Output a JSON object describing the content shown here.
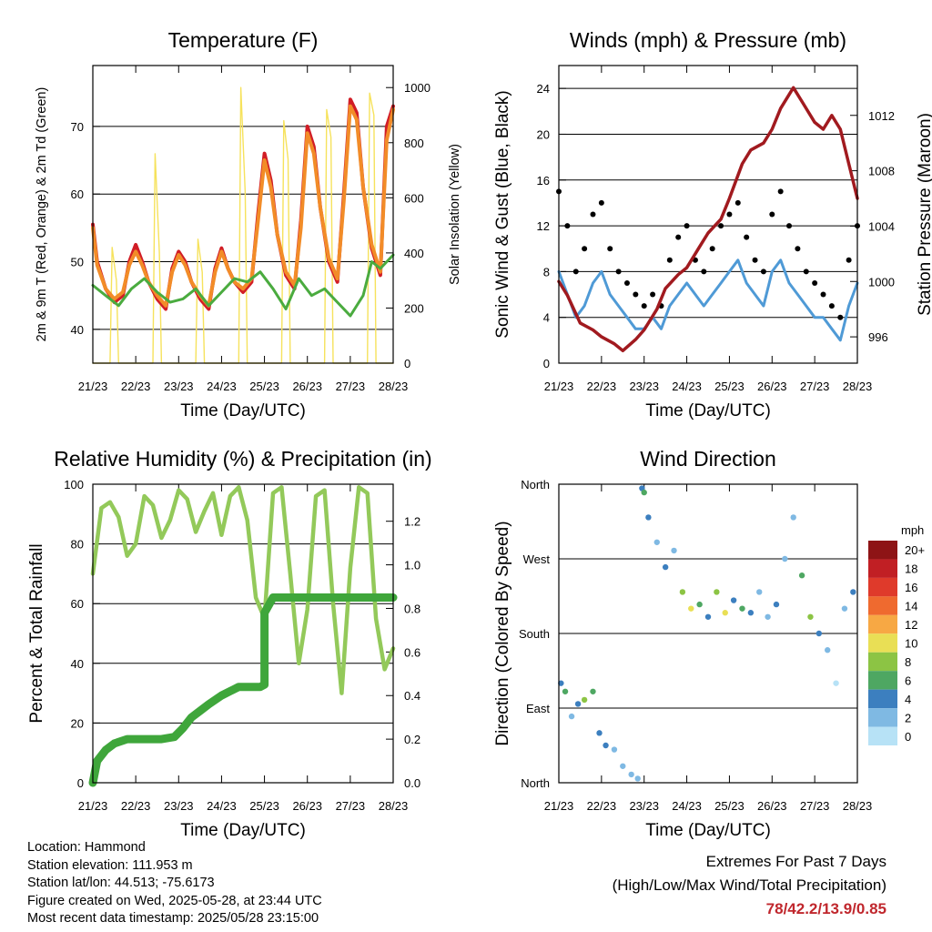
{
  "footer": {
    "location": "Location: Hammond",
    "elevation": "Station elevation: 111.953 m",
    "latlon": "Station lat/lon: 44.513; -75.6173",
    "created": "Figure created on Wed, 2025-05-28, at 23:44 UTC",
    "latest": "Most recent data timestamp: 2025/05/28 23:15:00"
  },
  "extremes": {
    "title": "Extremes For Past 7 Days",
    "subtitle": "(High/Low/Max Wind/Total Precipitation)",
    "values": "78/42.2/13.9/0.85"
  },
  "colors": {
    "temp_2m": "#d11d26",
    "temp_9m": "#f28c28",
    "dewpoint": "#4aab3f",
    "solar": "#f6e25c",
    "gust": "#000000",
    "wind": "#4f9ad6",
    "pressure": "#a11a1f",
    "rh": "#93c95a",
    "precip": "#3fa63b"
  },
  "chart_data": [
    {
      "type": "line",
      "title": "Temperature (F)",
      "xlabel": "Time (Day/UTC)",
      "ylabel": "2m & 9m T (Red, Orange) & 2m Td (Green)",
      "y2label": "Solar Insolation (Yellow)",
      "x_ticks": [
        "21/23",
        "22/23",
        "23/23",
        "24/23",
        "25/23",
        "26/23",
        "27/23",
        "28/23"
      ],
      "xlim": [
        0,
        7
      ],
      "ylim": [
        35,
        79
      ],
      "y_ticks": [
        40,
        50,
        60,
        70
      ],
      "y2lim": [
        0,
        1080
      ],
      "y2_ticks": [
        0,
        200,
        400,
        600,
        800,
        1000
      ],
      "grid": true,
      "series": [
        {
          "key": "temp_2m",
          "x": [
            0,
            0.1,
            0.3,
            0.5,
            0.7,
            0.85,
            1.0,
            1.15,
            1.3,
            1.5,
            1.7,
            1.85,
            2.0,
            2.15,
            2.3,
            2.5,
            2.7,
            2.85,
            3.0,
            3.15,
            3.3,
            3.5,
            3.7,
            3.85,
            4.0,
            4.15,
            4.3,
            4.5,
            4.7,
            4.85,
            5.0,
            5.15,
            5.3,
            5.5,
            5.7,
            5.85,
            6.0,
            6.15,
            6.3,
            6.5,
            6.7,
            6.85,
            7.0
          ],
          "y": [
            55.5,
            50,
            46,
            44,
            45,
            50,
            52.5,
            50,
            47,
            44.5,
            43,
            49,
            51.5,
            50,
            47,
            44.5,
            43,
            49,
            52,
            49,
            47,
            45.5,
            47,
            57,
            66,
            62,
            54,
            48,
            46,
            56,
            70,
            67,
            58,
            50,
            47,
            60,
            74,
            72,
            61,
            52,
            48,
            70,
            73
          ]
        },
        {
          "key": "temp_9m",
          "x": [
            0,
            0.1,
            0.3,
            0.5,
            0.7,
            0.85,
            1.0,
            1.15,
            1.3,
            1.5,
            1.7,
            1.85,
            2.0,
            2.15,
            2.3,
            2.5,
            2.7,
            2.85,
            3.0,
            3.15,
            3.3,
            3.5,
            3.7,
            3.85,
            4.0,
            4.15,
            4.3,
            4.5,
            4.7,
            4.85,
            5.0,
            5.15,
            5.3,
            5.5,
            5.7,
            5.85,
            6.0,
            6.15,
            6.3,
            6.5,
            6.7,
            6.85,
            7.0
          ],
          "y": [
            55,
            49.5,
            46,
            44.5,
            45.5,
            49.5,
            51.5,
            49.5,
            47,
            45,
            43.5,
            48.5,
            51,
            49.5,
            47,
            45,
            43.5,
            48.5,
            51.5,
            49,
            47,
            46,
            47.5,
            56,
            65,
            61,
            54,
            48.5,
            46.5,
            55,
            69,
            66,
            58,
            50.5,
            47.5,
            59,
            73,
            71,
            61,
            52.5,
            48.5,
            68,
            72.5
          ]
        },
        {
          "key": "dewpoint",
          "x": [
            0,
            0.3,
            0.6,
            0.9,
            1.2,
            1.5,
            1.8,
            2.1,
            2.4,
            2.7,
            3.0,
            3.3,
            3.6,
            3.9,
            4.2,
            4.5,
            4.8,
            5.1,
            5.4,
            5.7,
            6.0,
            6.3,
            6.5,
            6.7,
            7.0
          ],
          "y": [
            46.5,
            45,
            43.5,
            46,
            47.5,
            45.5,
            44,
            44.5,
            46,
            43.5,
            45.5,
            47.5,
            47,
            48.5,
            46,
            43,
            47.5,
            45,
            46,
            44,
            42,
            45,
            50,
            49,
            51
          ]
        },
        {
          "key": "solar",
          "axis": "y2",
          "x": [
            0,
            0.4,
            0.45,
            0.55,
            0.6,
            1.0,
            1.4,
            1.45,
            1.55,
            1.6,
            2.0,
            2.4,
            2.45,
            2.55,
            2.6,
            3.0,
            3.4,
            3.45,
            3.55,
            3.6,
            4.0,
            4.4,
            4.45,
            4.55,
            4.6,
            5.0,
            5.4,
            5.45,
            5.55,
            5.6,
            6.0,
            6.4,
            6.45,
            6.55,
            6.6,
            7.0
          ],
          "y": [
            0,
            0,
            420,
            300,
            0,
            0,
            0,
            760,
            400,
            0,
            0,
            0,
            450,
            330,
            0,
            0,
            0,
            1000,
            620,
            0,
            0,
            0,
            880,
            740,
            0,
            0,
            0,
            920,
            820,
            0,
            0,
            0,
            980,
            900,
            0,
            0
          ]
        }
      ]
    },
    {
      "type": "scatter",
      "title": "Winds (mph) & Pressure (mb)",
      "xlabel": "Time (Day/UTC)",
      "ylabel": "Sonic Wind & Gust (Blue, Black)",
      "y2label": "Station Pressure (Maroon)",
      "x_ticks": [
        "21/23",
        "22/23",
        "23/23",
        "24/23",
        "25/23",
        "26/23",
        "27/23",
        "28/23"
      ],
      "xlim": [
        0,
        7
      ],
      "ylim": [
        0,
        26
      ],
      "y_ticks": [
        0,
        4,
        8,
        12,
        16,
        20,
        24
      ],
      "y2lim": [
        994.1,
        1015.6
      ],
      "y2_ticks": [
        996,
        1000,
        1004,
        1008,
        1012
      ],
      "grid": true,
      "series": [
        {
          "key": "gust",
          "x": [
            0.0,
            0.2,
            0.4,
            0.6,
            0.8,
            1.0,
            1.2,
            1.4,
            1.6,
            1.8,
            2.0,
            2.2,
            2.4,
            2.6,
            2.8,
            3.0,
            3.2,
            3.4,
            3.6,
            3.8,
            4.0,
            4.2,
            4.4,
            4.6,
            4.8,
            5.0,
            5.2,
            5.4,
            5.6,
            5.8,
            6.0,
            6.2,
            6.4,
            6.6,
            6.8,
            7.0
          ],
          "y": [
            15,
            12,
            8,
            10,
            13,
            14,
            10,
            8,
            7,
            6,
            5,
            6,
            5,
            9,
            11,
            12,
            9,
            8,
            10,
            12,
            13,
            14,
            11,
            9,
            8,
            13,
            15,
            12,
            10,
            8,
            7,
            6,
            5,
            4,
            9,
            12
          ]
        },
        {
          "key": "wind",
          "x": [
            0.0,
            0.2,
            0.4,
            0.6,
            0.8,
            1.0,
            1.2,
            1.4,
            1.6,
            1.8,
            2.0,
            2.2,
            2.4,
            2.6,
            2.8,
            3.0,
            3.2,
            3.4,
            3.6,
            3.8,
            4.0,
            4.2,
            4.4,
            4.6,
            4.8,
            5.0,
            5.2,
            5.4,
            5.6,
            5.8,
            6.0,
            6.2,
            6.4,
            6.6,
            6.8,
            7.0
          ],
          "y": [
            8,
            6,
            4,
            5,
            7,
            8,
            6,
            5,
            4,
            3,
            3,
            4,
            3,
            5,
            6,
            7,
            6,
            5,
            6,
            7,
            8,
            9,
            7,
            6,
            5,
            8,
            9,
            7,
            6,
            5,
            4,
            4,
            3,
            2,
            5,
            7
          ]
        },
        {
          "key": "pressure",
          "axis": "y2",
          "x": [
            0,
            0.2,
            0.5,
            0.8,
            1.0,
            1.3,
            1.5,
            1.8,
            2.0,
            2.3,
            2.5,
            2.8,
            3.0,
            3.3,
            3.5,
            3.8,
            4.0,
            4.3,
            4.5,
            4.8,
            5.0,
            5.2,
            5.5,
            5.7,
            6.0,
            6.2,
            6.4,
            6.6,
            6.8,
            7.0
          ],
          "y": [
            1000,
            999,
            997,
            996.5,
            996,
            995.5,
            995,
            995.8,
            996.5,
            998,
            999.5,
            1000.5,
            1001,
            1002.5,
            1003.5,
            1004.5,
            1006,
            1008.5,
            1009.5,
            1010,
            1011,
            1012.5,
            1014,
            1013,
            1011.5,
            1011,
            1012,
            1011,
            1008.5,
            1006
          ]
        }
      ]
    },
    {
      "type": "line",
      "title": "Relative Humidity (%) & Precipitation (in)",
      "xlabel": "Time (Day/UTC)",
      "ylabel": "Percent & Total Rainfall",
      "x_ticks": [
        "21/23",
        "22/23",
        "23/23",
        "24/23",
        "25/23",
        "26/23",
        "27/23",
        "28/23"
      ],
      "xlim": [
        0,
        7
      ],
      "ylim": [
        0,
        100
      ],
      "y_ticks": [
        0,
        20,
        40,
        60,
        80,
        100
      ],
      "y2lim": [
        0,
        1.37
      ],
      "y2_ticks": [
        "0.0",
        "0.2",
        "0.4",
        "0.6",
        "0.8",
        "1.0",
        "1.2"
      ],
      "grid": true,
      "series": [
        {
          "key": "rh",
          "x": [
            0,
            0.2,
            0.4,
            0.6,
            0.8,
            1.0,
            1.2,
            1.4,
            1.6,
            1.8,
            2.0,
            2.2,
            2.4,
            2.6,
            2.8,
            3.0,
            3.2,
            3.4,
            3.6,
            3.8,
            4.0,
            4.2,
            4.4,
            4.6,
            4.8,
            5.0,
            5.2,
            5.4,
            5.6,
            5.8,
            6.0,
            6.2,
            6.4,
            6.6,
            6.8,
            7.0
          ],
          "y": [
            70,
            92,
            94,
            89,
            76,
            80,
            96,
            93,
            82,
            88,
            98,
            95,
            84,
            91,
            97,
            83,
            96,
            99,
            88,
            62,
            55,
            97,
            99,
            70,
            40,
            58,
            96,
            98,
            60,
            30,
            72,
            99,
            97,
            55,
            38,
            45
          ]
        },
        {
          "key": "precip",
          "axis": "y2",
          "x": [
            0,
            0.1,
            0.3,
            0.5,
            0.8,
            1.0,
            1.3,
            1.6,
            1.9,
            2.1,
            2.3,
            2.5,
            2.7,
            3.0,
            3.2,
            3.4,
            3.6,
            3.9,
            4.0,
            4.0,
            4.2,
            4.5,
            5.0,
            5.5,
            6.0,
            6.5,
            7.0
          ],
          "y": [
            0,
            0.1,
            0.15,
            0.18,
            0.2,
            0.2,
            0.2,
            0.2,
            0.21,
            0.25,
            0.3,
            0.33,
            0.36,
            0.4,
            0.42,
            0.44,
            0.44,
            0.44,
            0.45,
            0.78,
            0.85,
            0.85,
            0.85,
            0.85,
            0.85,
            0.85,
            0.85
          ]
        }
      ]
    },
    {
      "type": "scatter",
      "title": "Wind Direction",
      "xlabel": "Time (Day/UTC)",
      "ylabel": "Direction (Colored By Speed)",
      "x_ticks": [
        "21/23",
        "22/23",
        "23/23",
        "24/23",
        "25/23",
        "26/23",
        "27/23",
        "28/23"
      ],
      "xlim": [
        0,
        7
      ],
      "ylim": [
        0,
        360
      ],
      "y_ticks": [
        "North",
        "East",
        "South",
        "West",
        "North"
      ],
      "grid": true,
      "colorbar": {
        "title": "mph",
        "labels": [
          "20+",
          "18",
          "16",
          "14",
          "12",
          "10",
          "8",
          "6",
          "4",
          "2",
          "0"
        ],
        "colors": [
          "#8e1416",
          "#c11f24",
          "#df3a2b",
          "#ef6a2f",
          "#f7a844",
          "#e9df55",
          "#8cc444",
          "#4ea762",
          "#3c7fbf",
          "#7fb9e3",
          "#b7e2f6"
        ]
      },
      "series": [
        {
          "name": "direction",
          "x": [
            0.05,
            0.15,
            0.3,
            0.45,
            0.6,
            0.8,
            0.95,
            1.1,
            1.3,
            1.5,
            1.7,
            1.85,
            1.95,
            2.0,
            2.1,
            2.3,
            2.5,
            2.7,
            2.9,
            3.1,
            3.3,
            3.5,
            3.7,
            3.9,
            4.1,
            4.3,
            4.5,
            4.7,
            4.9,
            5.1,
            5.3,
            5.5,
            5.7,
            5.9,
            6.1,
            6.3,
            6.5,
            6.7,
            6.9
          ],
          "y": [
            120,
            110,
            80,
            95,
            100,
            110,
            60,
            45,
            40,
            20,
            10,
            5,
            355,
            350,
            320,
            290,
            260,
            280,
            230,
            210,
            215,
            200,
            230,
            205,
            220,
            210,
            205,
            230,
            200,
            215,
            270,
            320,
            250,
            200,
            180,
            160,
            120,
            210,
            230
          ],
          "speed": [
            4,
            6,
            3,
            5,
            8,
            6,
            4,
            5,
            3,
            2,
            3,
            2,
            4,
            6,
            5,
            3,
            4,
            2,
            8,
            10,
            6,
            4,
            8,
            10,
            5,
            6,
            4,
            3,
            2,
            4,
            3,
            2,
            6,
            8,
            4,
            2,
            1,
            3,
            5
          ]
        }
      ]
    }
  ]
}
